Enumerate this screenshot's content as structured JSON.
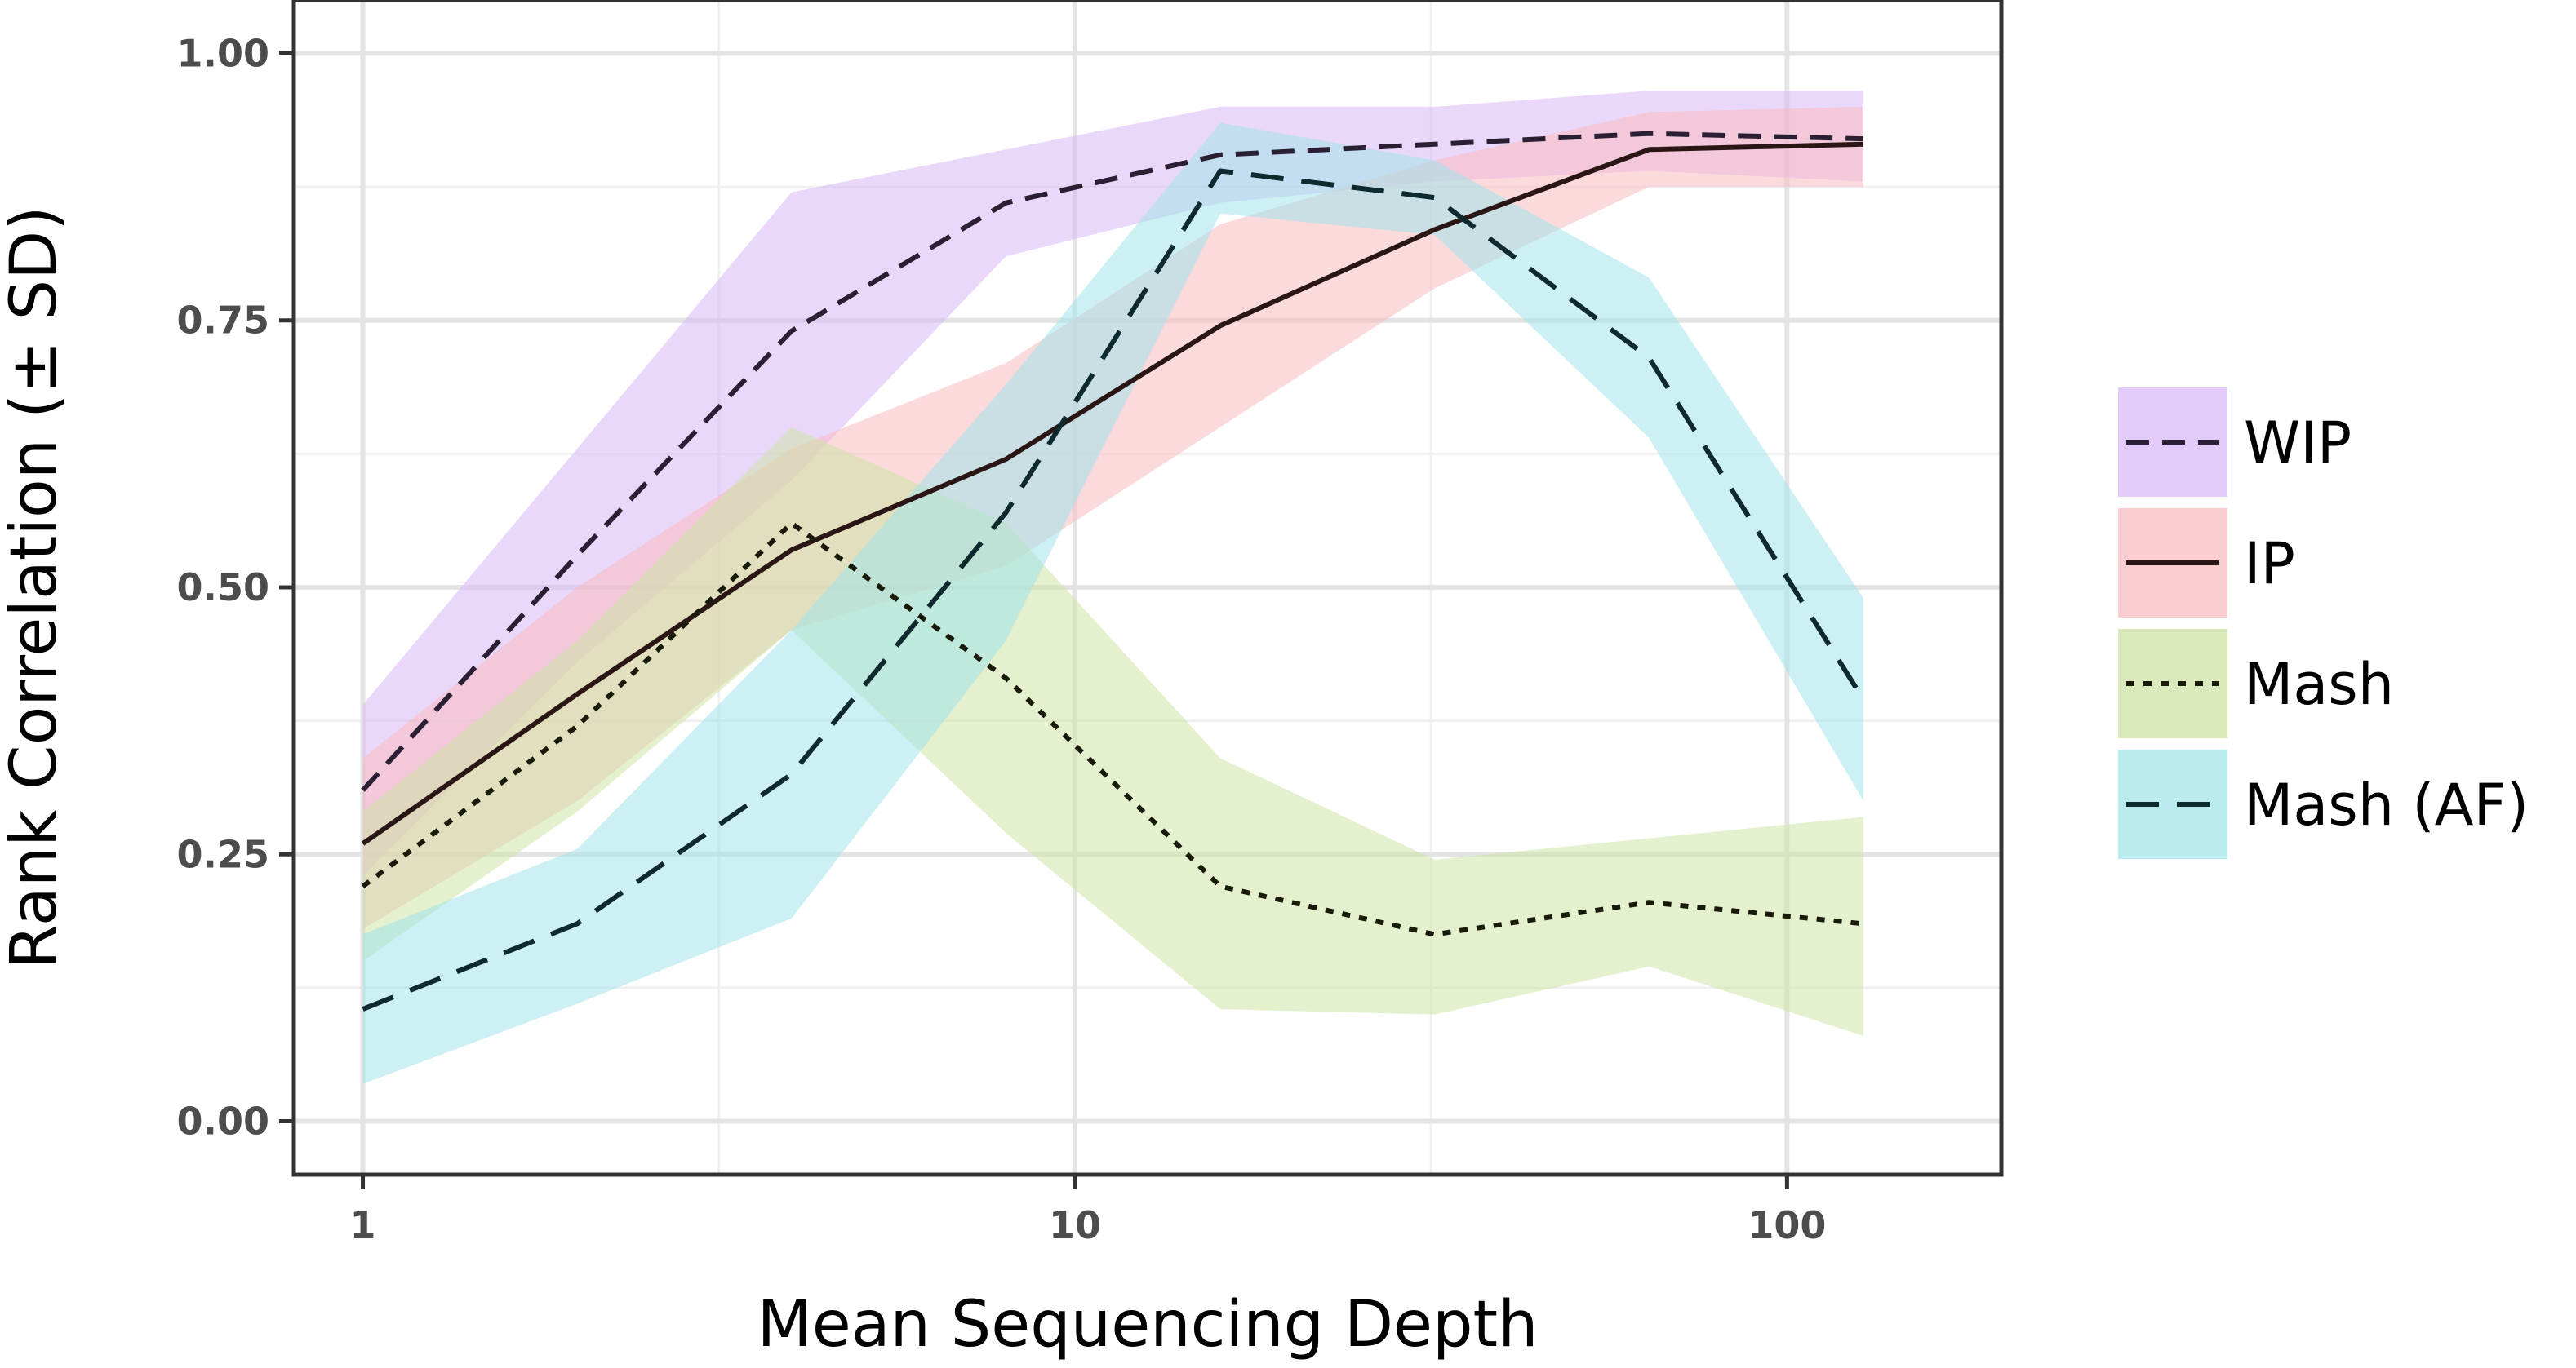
{
  "chart_data": {
    "type": "line",
    "title": "",
    "xlabel": "Mean Sequencing Depth",
    "ylabel": "Rank Correlation (± SD)",
    "x_scale": "log10",
    "xlim": [
      0.8,
      200
    ],
    "ylim": [
      -0.05,
      1.05
    ],
    "x_ticks": [
      1,
      10,
      100
    ],
    "x_tick_labels": [
      "1",
      "10",
      "100"
    ],
    "y_ticks": [
      0,
      0.25,
      0.5,
      0.75,
      1.0
    ],
    "y_tick_labels": [
      "0.00",
      "0.25",
      "0.50",
      "0.75",
      "1.00"
    ],
    "grid": true,
    "legend_position": "right",
    "x": [
      1,
      2,
      4,
      8,
      16,
      32,
      64,
      128
    ],
    "series": [
      {
        "name": "WIP",
        "linestyle": "dashed",
        "line_color": "#2a1f33",
        "band_color": "#d8b8f7",
        "values": [
          0.31,
          0.53,
          0.74,
          0.86,
          0.905,
          0.915,
          0.925,
          0.92
        ],
        "lower": [
          0.23,
          0.43,
          0.6,
          0.81,
          0.86,
          0.88,
          0.89,
          0.88
        ],
        "upper": [
          0.39,
          0.63,
          0.87,
          0.91,
          0.95,
          0.95,
          0.965,
          0.965
        ]
      },
      {
        "name": "IP",
        "linestyle": "solid",
        "line_color": "#2b1616",
        "band_color": "#f8bcc0",
        "values": [
          0.26,
          0.4,
          0.535,
          0.62,
          0.745,
          0.835,
          0.91,
          0.915
        ],
        "lower": [
          0.18,
          0.3,
          0.46,
          0.52,
          0.65,
          0.78,
          0.875,
          0.875
        ],
        "upper": [
          0.34,
          0.5,
          0.63,
          0.71,
          0.84,
          0.9,
          0.945,
          0.95
        ]
      },
      {
        "name": "Mash",
        "linestyle": "dotted",
        "line_color": "#1a1a0a",
        "band_color": "#cde3a6",
        "values": [
          0.22,
          0.37,
          0.56,
          0.415,
          0.22,
          0.175,
          0.205,
          0.185
        ],
        "lower": [
          0.15,
          0.29,
          0.46,
          0.27,
          0.105,
          0.1,
          0.145,
          0.08
        ],
        "upper": [
          0.29,
          0.45,
          0.65,
          0.56,
          0.34,
          0.245,
          0.265,
          0.285
        ]
      },
      {
        "name": "Mash (AF)",
        "linestyle": "longdash",
        "line_color": "#0f2a2e",
        "band_color": "#a3e4ea",
        "values": [
          0.105,
          0.185,
          0.325,
          0.57,
          0.89,
          0.865,
          0.715,
          0.395
        ],
        "lower": [
          0.035,
          0.11,
          0.19,
          0.45,
          0.85,
          0.83,
          0.64,
          0.3
        ],
        "upper": [
          0.175,
          0.255,
          0.46,
          0.69,
          0.935,
          0.9,
          0.79,
          0.49
        ]
      }
    ]
  }
}
